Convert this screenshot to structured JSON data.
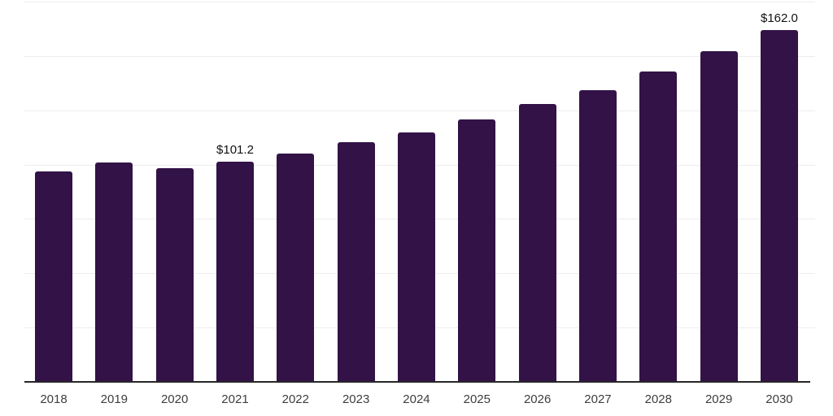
{
  "chart_data": {
    "type": "bar",
    "title": "",
    "xlabel": "",
    "ylabel": "",
    "categories": [
      "2018",
      "2019",
      "2020",
      "2021",
      "2022",
      "2023",
      "2024",
      "2025",
      "2026",
      "2027",
      "2028",
      "2029",
      "2030"
    ],
    "values": [
      96.9,
      100.9,
      98.4,
      101.2,
      105.0,
      110.2,
      114.8,
      120.6,
      127.8,
      134.4,
      142.8,
      152.1,
      162.0
    ],
    "labeled_points": [
      {
        "category": "2021",
        "label": "$101.2"
      },
      {
        "category": "2030",
        "label": "$162.0"
      }
    ],
    "ylim": [
      0,
      175
    ],
    "gridline_interval": 25,
    "grid": true,
    "legend": false,
    "y_axis_labels_visible": false,
    "colors": {
      "bar": "#321247",
      "gridline": "#ededed",
      "axis_line": "#262626",
      "tick_label": "#3d3d3d",
      "data_label": "#111111",
      "background": "#ffffff"
    }
  }
}
